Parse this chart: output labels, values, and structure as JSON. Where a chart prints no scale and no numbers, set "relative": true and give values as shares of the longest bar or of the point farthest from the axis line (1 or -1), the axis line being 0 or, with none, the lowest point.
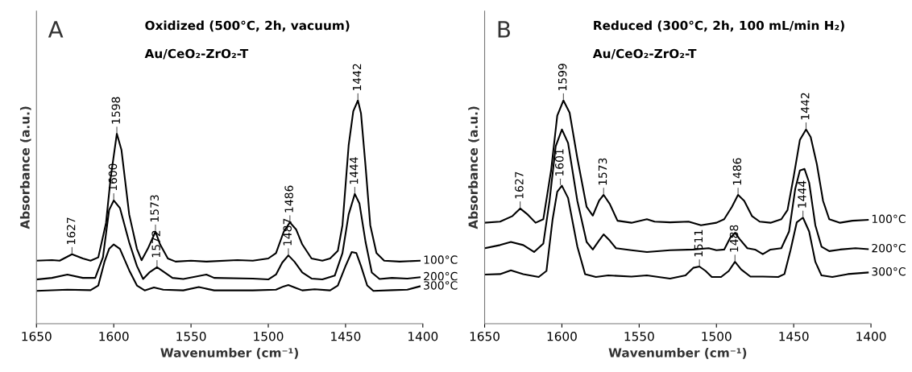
{
  "chart_data": [
    {
      "type": "line",
      "title": "A",
      "subtitle": "Oxidized (500°C, 2h, vacuum)",
      "xlabel": "Wavenumber (cm⁻¹)",
      "ylabel": "Absorbance (a.u.)",
      "relative": true,
      "xlim": [
        1650,
        1400
      ],
      "xticks": [
        1650,
        1600,
        1550,
        1500,
        1450,
        1400
      ],
      "series": [
        {
          "name": "100°C",
          "color": "#000000",
          "x": [
            1650,
            1640,
            1635,
            1627,
            1620,
            1615,
            1610,
            1605,
            1602,
            1598,
            1595,
            1590,
            1585,
            1582,
            1578,
            1573,
            1570,
            1565,
            1560,
            1550,
            1540,
            1520,
            1510,
            1500,
            1495,
            1490,
            1486,
            1482,
            1478,
            1472,
            1465,
            1460,
            1455,
            1452,
            1448,
            1445,
            1442,
            1440,
            1437,
            1434,
            1430,
            1425,
            1415,
            1402
          ],
          "values": [
            0.282,
            0.285,
            0.282,
            0.311,
            0.292,
            0.282,
            0.297,
            0.451,
            0.653,
            0.851,
            0.778,
            0.489,
            0.335,
            0.284,
            0.335,
            0.412,
            0.355,
            0.292,
            0.278,
            0.282,
            0.278,
            0.285,
            0.282,
            0.292,
            0.316,
            0.412,
            0.454,
            0.422,
            0.355,
            0.292,
            0.282,
            0.292,
            0.326,
            0.441,
            0.798,
            0.952,
            1.0,
            0.942,
            0.701,
            0.441,
            0.316,
            0.282,
            0.278,
            0.282
          ]
        },
        {
          "name": "200°C",
          "color": "#000000",
          "x": [
            1650,
            1640,
            1630,
            1620,
            1612,
            1607,
            1603,
            1600,
            1596,
            1590,
            1585,
            1581,
            1577,
            1572,
            1568,
            1562,
            1555,
            1540,
            1535,
            1510,
            1500,
            1495,
            1491,
            1487,
            1483,
            1478,
            1472,
            1465,
            1457,
            1452,
            1448,
            1444,
            1441,
            1437,
            1433,
            1428,
            1420,
            1410,
            1402
          ],
          "values": [
            0.198,
            0.205,
            0.22,
            0.205,
            0.205,
            0.297,
            0.509,
            0.552,
            0.518,
            0.364,
            0.258,
            0.2,
            0.229,
            0.253,
            0.234,
            0.205,
            0.2,
            0.22,
            0.205,
            0.202,
            0.198,
            0.22,
            0.273,
            0.306,
            0.277,
            0.229,
            0.202,
            0.198,
            0.215,
            0.316,
            0.489,
            0.581,
            0.538,
            0.364,
            0.229,
            0.2,
            0.205,
            0.202,
            0.208
          ]
        },
        {
          "name": "300°C",
          "color": "#000000",
          "x": [
            1650,
            1630,
            1615,
            1610,
            1606,
            1603,
            1600,
            1596,
            1590,
            1585,
            1580,
            1574,
            1568,
            1555,
            1545,
            1535,
            1510,
            1495,
            1490,
            1487,
            1483,
            1478,
            1470,
            1460,
            1455,
            1450,
            1446,
            1443,
            1440,
            1436,
            1432,
            1420,
            1410,
            1402
          ],
          "values": [
            0.147,
            0.152,
            0.15,
            0.171,
            0.277,
            0.335,
            0.355,
            0.335,
            0.239,
            0.171,
            0.149,
            0.162,
            0.152,
            0.149,
            0.164,
            0.149,
            0.149,
            0.152,
            0.167,
            0.173,
            0.162,
            0.149,
            0.154,
            0.149,
            0.171,
            0.258,
            0.321,
            0.316,
            0.258,
            0.171,
            0.147,
            0.15,
            0.152,
            0.167
          ]
        }
      ],
      "annotations": [
        "Au/CeO₂-ZrO₂-T",
        {
          "text": "1627",
          "x": 1627,
          "y": 0.311
        },
        {
          "text": "1598",
          "x": 1598,
          "y": 0.851
        },
        {
          "text": "1600",
          "x": 1600,
          "y": 0.552
        },
        {
          "text": "1573",
          "x": 1573,
          "y": 0.412
        },
        {
          "text": "1572",
          "x": 1572,
          "y": 0.253
        },
        {
          "text": "1486",
          "x": 1486,
          "y": 0.454
        },
        {
          "text": "1487",
          "x": 1487,
          "y": 0.306
        },
        {
          "text": "1442",
          "x": 1442,
          "y": 1.0
        },
        {
          "text": "1444",
          "x": 1444,
          "y": 0.581
        }
      ]
    },
    {
      "type": "line",
      "title": "B",
      "subtitle": "Reduced (300°C, 2h, 100 mL/min H₂)",
      "xlabel": "Wavenumber (cm⁻¹)",
      "ylabel": "Absorbance (a.u.)",
      "relative": true,
      "xlim": [
        1650,
        1400
      ],
      "xticks": [
        1650,
        1600,
        1550,
        1500,
        1450,
        1400
      ],
      "series": [
        {
          "name": "100°C",
          "color": "#000000",
          "x": [
            1650,
            1640,
            1632,
            1627,
            1622,
            1617,
            1612,
            1607,
            1603,
            1599,
            1595,
            1590,
            1584,
            1580,
            1576,
            1573,
            1569,
            1564,
            1555,
            1545,
            1540,
            1530,
            1518,
            1510,
            1500,
            1495,
            1490,
            1486,
            1482,
            1477,
            1472,
            1465,
            1458,
            1454,
            1450,
            1446,
            1442,
            1439,
            1435,
            1431,
            1427,
            1420,
            1412,
            1402
          ],
          "values": [
            0.452,
            0.457,
            0.482,
            0.516,
            0.488,
            0.452,
            0.468,
            0.686,
            0.932,
            1.0,
            0.945,
            0.741,
            0.523,
            0.484,
            0.55,
            0.577,
            0.536,
            0.461,
            0.452,
            0.468,
            0.457,
            0.454,
            0.457,
            0.441,
            0.452,
            0.468,
            0.523,
            0.577,
            0.55,
            0.482,
            0.457,
            0.452,
            0.468,
            0.509,
            0.659,
            0.823,
            0.87,
            0.836,
            0.714,
            0.55,
            0.468,
            0.452,
            0.461,
            0.465
          ]
        },
        {
          "name": "200°C",
          "color": "#000000",
          "x": [
            1650,
            1640,
            1633,
            1625,
            1618,
            1612,
            1608,
            1604,
            1600,
            1596,
            1590,
            1584,
            1580,
            1576,
            1573,
            1569,
            1565,
            1555,
            1545,
            1530,
            1515,
            1505,
            1500,
            1495,
            1491,
            1488,
            1485,
            1480,
            1475,
            1470,
            1465,
            1458,
            1453,
            1449,
            1446,
            1443,
            1440,
            1436,
            1432,
            1427,
            1420,
            1410,
            1402
          ],
          "values": [
            0.338,
            0.352,
            0.366,
            0.352,
            0.321,
            0.359,
            0.55,
            0.795,
            0.87,
            0.809,
            0.55,
            0.366,
            0.332,
            0.372,
            0.4,
            0.372,
            0.338,
            0.329,
            0.321,
            0.329,
            0.332,
            0.338,
            0.329,
            0.332,
            0.386,
            0.407,
            0.379,
            0.338,
            0.332,
            0.311,
            0.332,
            0.338,
            0.413,
            0.604,
            0.686,
            0.693,
            0.632,
            0.441,
            0.345,
            0.325,
            0.332,
            0.338,
            0.334
          ]
        },
        {
          "name": "300°C",
          "color": "#000000",
          "x": [
            1650,
            1640,
            1633,
            1625,
            1615,
            1610,
            1606,
            1603,
            1600,
            1596,
            1590,
            1585,
            1578,
            1570,
            1555,
            1545,
            1530,
            1520,
            1515,
            1511,
            1507,
            1503,
            1497,
            1492,
            1488,
            1484,
            1478,
            1470,
            1460,
            1456,
            1452,
            1448,
            1444,
            1440,
            1436,
            1432,
            1425,
            1415,
            1402
          ],
          "values": [
            0.22,
            0.222,
            0.239,
            0.222,
            0.209,
            0.236,
            0.468,
            0.591,
            0.618,
            0.563,
            0.345,
            0.222,
            0.209,
            0.216,
            0.211,
            0.216,
            0.202,
            0.216,
            0.25,
            0.256,
            0.236,
            0.209,
            0.209,
            0.236,
            0.277,
            0.243,
            0.211,
            0.211,
            0.209,
            0.222,
            0.331,
            0.454,
            0.475,
            0.413,
            0.277,
            0.216,
            0.209,
            0.222,
            0.229
          ]
        }
      ],
      "annotations": [
        "Au/CeO₂-ZrO₂-T",
        {
          "text": "1627",
          "x": 1627,
          "y": 0.516
        },
        {
          "text": "1599",
          "x": 1599,
          "y": 1.0
        },
        {
          "text": "1601",
          "x": 1601,
          "y": 0.618
        },
        {
          "text": "1573",
          "x": 1573,
          "y": 0.577
        },
        {
          "text": "1486",
          "x": 1486,
          "y": 0.577
        },
        {
          "text": "1511",
          "x": 1511,
          "y": 0.256
        },
        {
          "text": "1488",
          "x": 1488,
          "y": 0.277
        },
        {
          "text": "1442",
          "x": 1442,
          "y": 0.87
        },
        {
          "text": "1444",
          "x": 1444,
          "y": 0.475
        }
      ]
    }
  ]
}
